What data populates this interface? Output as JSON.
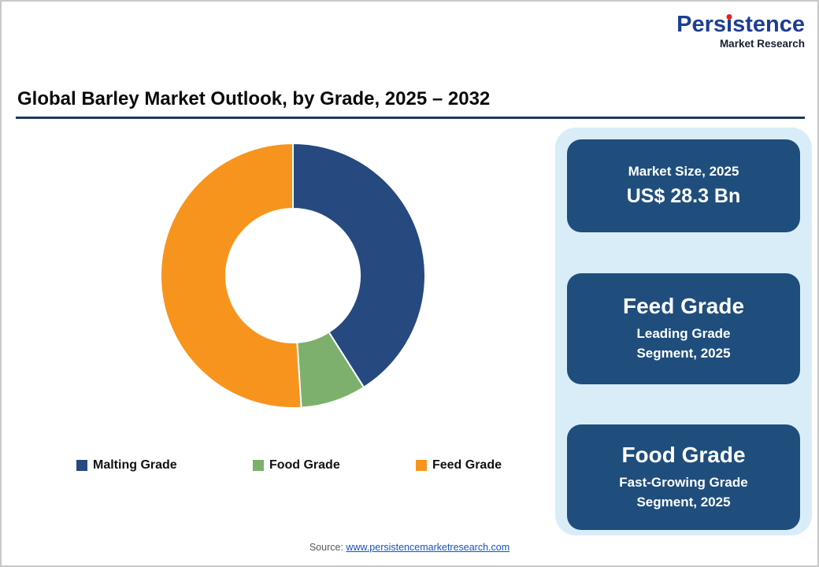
{
  "logo": {
    "name_pre": "Pers",
    "name_i": "i",
    "name_post": "stence",
    "tagline": "Market Research"
  },
  "header": {
    "title": "Global Barley Market Outlook, by Grade, 2025 – 2032"
  },
  "chart_data": {
    "type": "pie",
    "subtype": "donut",
    "title": "Global Barley Market Outlook, by Grade, 2025 – 2032",
    "start_angle_deg": 0,
    "direction": "clockwise",
    "inner_radius_ratio": 0.51,
    "legend_position": "bottom",
    "segments": [
      {
        "label": "Malting Grade",
        "value": 41,
        "color": "#26497F"
      },
      {
        "label": "Food Grade",
        "value": 8,
        "color": "#7CB06C"
      },
      {
        "label": "Feed Grade",
        "value": 51,
        "color": "#F7941E"
      }
    ]
  },
  "panel": {
    "market_size": {
      "label": "Market Size, 2025",
      "value": "US$ 28.3 Bn"
    },
    "leading": {
      "title": "Feed Grade",
      "line1": "Leading Grade",
      "line2": "Segment, 2025"
    },
    "fast_growing": {
      "title": "Food Grade",
      "line1": "Fast-Growing Grade",
      "line2": "Segment, 2025"
    }
  },
  "footer": {
    "source_label": "Source:",
    "source_link": "www.persistencemarketresearch.com"
  }
}
